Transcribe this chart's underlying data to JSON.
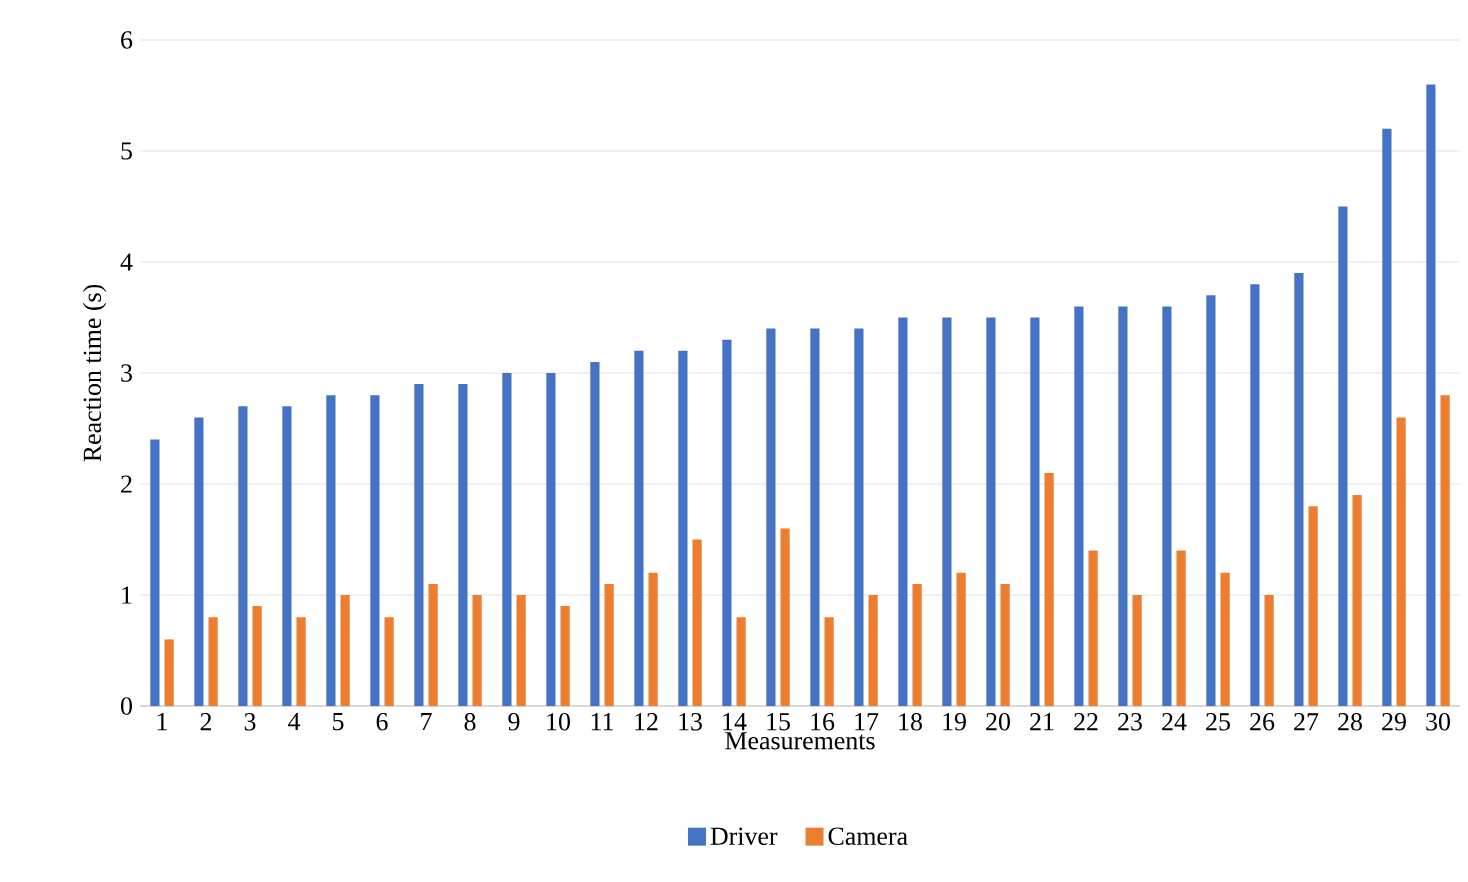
{
  "chart_data": {
    "type": "bar",
    "xlabel": "Measurements",
    "ylabel": "Reaction time (s)",
    "categories": [
      "1",
      "2",
      "3",
      "4",
      "5",
      "6",
      "7",
      "8",
      "9",
      "10",
      "11",
      "12",
      "13",
      "14",
      "15",
      "16",
      "17",
      "18",
      "19",
      "20",
      "21",
      "22",
      "23",
      "24",
      "25",
      "26",
      "27",
      "28",
      "29",
      "30"
    ],
    "series": [
      {
        "name": "Driver",
        "color": "#4472c4",
        "values": [
          2.4,
          2.6,
          2.7,
          2.7,
          2.8,
          2.8,
          2.9,
          2.9,
          3.0,
          3.0,
          3.1,
          3.2,
          3.2,
          3.3,
          3.4,
          3.4,
          3.4,
          3.5,
          3.5,
          3.5,
          3.5,
          3.6,
          3.6,
          3.6,
          3.7,
          3.8,
          3.9,
          4.5,
          5.2,
          5.6
        ]
      },
      {
        "name": "Camera",
        "color": "#ed7d31",
        "values": [
          0.6,
          0.8,
          0.9,
          0.8,
          1.0,
          0.8,
          1.1,
          1.0,
          1.0,
          0.9,
          1.1,
          1.2,
          1.5,
          0.8,
          1.6,
          0.8,
          1.0,
          1.1,
          1.2,
          1.1,
          2.1,
          1.4,
          1.0,
          1.4,
          1.2,
          1.0,
          1.8,
          1.9,
          2.6,
          2.8
        ]
      }
    ],
    "ylim": [
      0,
      6
    ],
    "yticks": [
      0,
      1,
      2,
      3,
      4,
      5,
      6
    ],
    "grid": "y",
    "legend": "bottom"
  }
}
